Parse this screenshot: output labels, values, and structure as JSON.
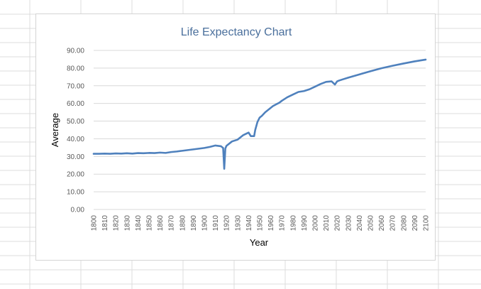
{
  "chart_data": {
    "type": "line",
    "title": "Life Expectancy Chart",
    "xlabel": "Year",
    "ylabel": "Average",
    "xlim": [
      1800,
      2100
    ],
    "ylim": [
      0,
      90
    ],
    "x_ticks": [
      1800,
      1810,
      1820,
      1830,
      1840,
      1850,
      1860,
      1870,
      1880,
      1890,
      1900,
      1910,
      1920,
      1930,
      1940,
      1950,
      1960,
      1970,
      1980,
      1990,
      2000,
      2010,
      2020,
      2030,
      2040,
      2050,
      2060,
      2070,
      2080,
      2090,
      2100
    ],
    "y_ticks": [
      "0.00",
      "10.00",
      "20.00",
      "30.00",
      "40.00",
      "50.00",
      "60.00",
      "70.00",
      "80.00",
      "90.00"
    ],
    "grid": true,
    "legend": "none",
    "series": [
      {
        "color": "#4f81bd",
        "x": [
          1800,
          1805,
          1810,
          1815,
          1820,
          1825,
          1830,
          1835,
          1840,
          1845,
          1850,
          1855,
          1860,
          1865,
          1870,
          1875,
          1880,
          1885,
          1890,
          1895,
          1900,
          1905,
          1910,
          1915,
          1917,
          1918,
          1919,
          1920,
          1925,
          1930,
          1935,
          1940,
          1942,
          1945,
          1946,
          1948,
          1950,
          1952,
          1955,
          1958,
          1960,
          1962,
          1965,
          1968,
          1970,
          1975,
          1980,
          1985,
          1990,
          1995,
          2000,
          2005,
          2010,
          2015,
          2018,
          2020,
          2022,
          2025,
          2030,
          2040,
          2050,
          2060,
          2070,
          2080,
          2090,
          2100
        ],
        "y": [
          31.5,
          31.5,
          31.6,
          31.5,
          31.7,
          31.6,
          31.8,
          31.6,
          31.9,
          31.8,
          32.0,
          31.9,
          32.2,
          32.0,
          32.5,
          32.8,
          33.2,
          33.6,
          34.0,
          34.4,
          34.8,
          35.4,
          36.2,
          35.8,
          34.8,
          23.0,
          34.5,
          36.0,
          38.5,
          39.5,
          42.0,
          43.5,
          41.5,
          41.5,
          45.0,
          49.5,
          52.0,
          53.0,
          55.0,
          56.5,
          57.5,
          58.5,
          59.5,
          60.5,
          61.5,
          63.5,
          65.0,
          66.5,
          67.0,
          68.0,
          69.5,
          71.0,
          72.2,
          72.5,
          70.7,
          72.5,
          73.0,
          73.6,
          74.6,
          76.4,
          78.2,
          79.9,
          81.3,
          82.6,
          83.8,
          84.8
        ]
      }
    ]
  },
  "colors": {
    "line": "#4f81bd",
    "title": "#4a6f9c",
    "gridline": "#d9d9d9",
    "sheet_grid": "#dcdcdc"
  }
}
